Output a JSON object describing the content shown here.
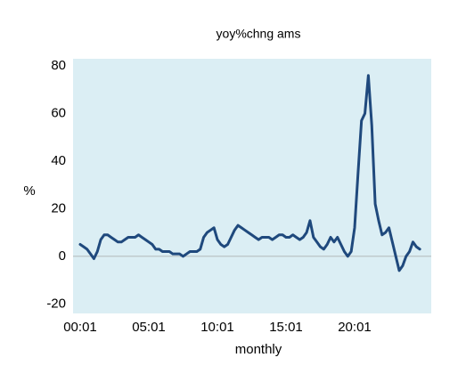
{
  "chart_data": {
    "type": "line",
    "title": "yoy%chng ams",
    "y_label": "%",
    "x_label": "monthly",
    "categories": [
      "00:01",
      null,
      null,
      null,
      null,
      null,
      null,
      null,
      null,
      null,
      null,
      null,
      null,
      null,
      null,
      null,
      null,
      null,
      null,
      null,
      "05:01",
      null,
      null,
      null,
      null,
      null,
      null,
      null,
      null,
      null,
      null,
      null,
      null,
      null,
      null,
      null,
      null,
      null,
      null,
      null,
      "10:01",
      null,
      null,
      null,
      null,
      null,
      null,
      null,
      null,
      null,
      null,
      null,
      null,
      null,
      null,
      null,
      null,
      null,
      null,
      null,
      "15:01",
      null,
      null,
      null,
      null,
      null,
      null,
      null,
      null,
      null,
      null,
      null,
      null,
      null,
      null,
      null,
      null,
      null,
      null,
      null,
      "20:01",
      null,
      null,
      null,
      null,
      null,
      null,
      null,
      null,
      null,
      null,
      null,
      null,
      null,
      null,
      null,
      null,
      null,
      null,
      null
    ],
    "series": [
      {
        "name": "yoy%chng ams",
        "color": "#1f497d",
        "values": [
          5,
          4,
          3,
          1,
          -1,
          2,
          7,
          9,
          9,
          8,
          7,
          6,
          6,
          7,
          8,
          8,
          8,
          9,
          8,
          7,
          6,
          5,
          3,
          3,
          2,
          2,
          2,
          1,
          1,
          1,
          0,
          1,
          2,
          2,
          2,
          3,
          8,
          10,
          11,
          12,
          7,
          5,
          4,
          5,
          8,
          11,
          13,
          12,
          11,
          10,
          9,
          8,
          7,
          8,
          8,
          8,
          7,
          8,
          9,
          9,
          8,
          8,
          9,
          8,
          7,
          8,
          10,
          15,
          8,
          6,
          4,
          3,
          5,
          8,
          6,
          8,
          5,
          2,
          0,
          2,
          12,
          35,
          57,
          60,
          76,
          55,
          22,
          15,
          9,
          10,
          12,
          6,
          0,
          -6,
          -4,
          0,
          2,
          6,
          4,
          3
        ]
      }
    ],
    "ylim": [
      -24,
      83
    ],
    "yticks": [
      -20,
      0,
      20,
      40,
      60,
      80
    ],
    "plot_background": "#dbeef4"
  }
}
